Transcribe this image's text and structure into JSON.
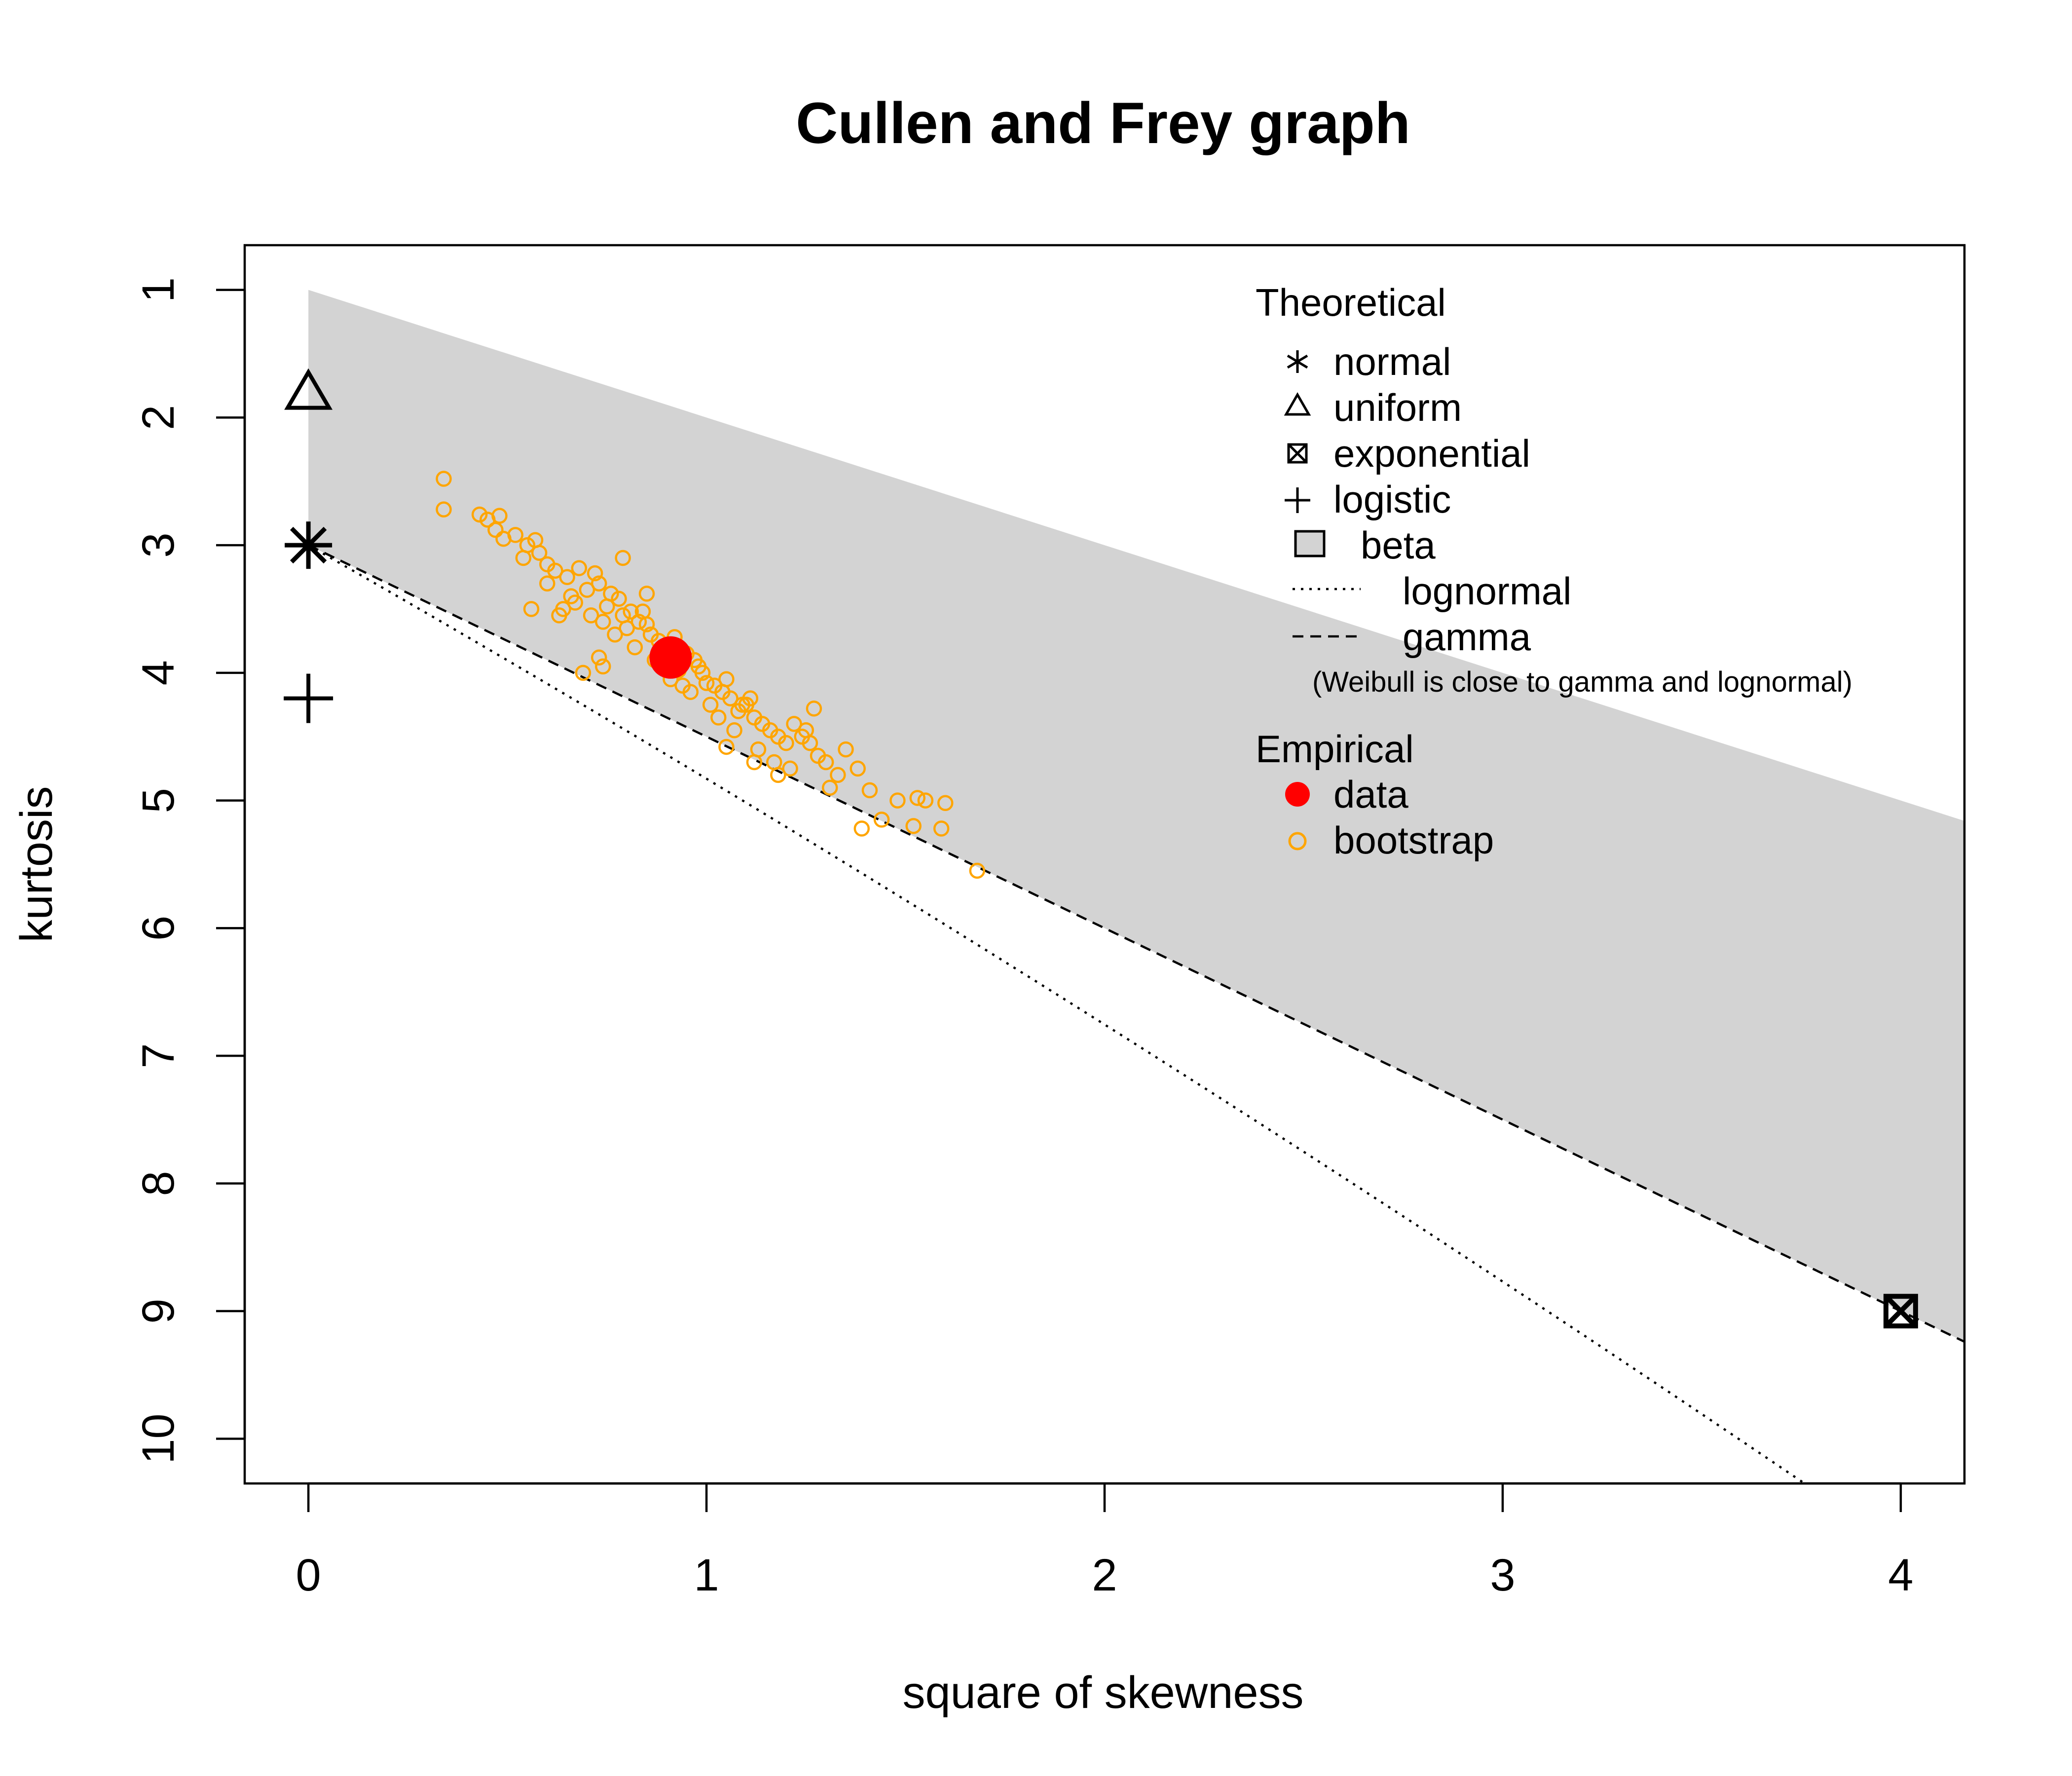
{
  "chart_data": {
    "type": "scatter",
    "title": "Cullen and Frey graph",
    "xlabel": "square of skewness",
    "ylabel": "kurtosis",
    "xlim": [
      -0.16,
      4.16
    ],
    "ylim": [
      10.35,
      0.65
    ],
    "y_axis_inverted": true,
    "xticks": [
      "0",
      "1",
      "2",
      "3",
      "4"
    ],
    "yticks": [
      "1",
      "2",
      "3",
      "4",
      "5",
      "6",
      "7",
      "8",
      "9",
      "10"
    ],
    "grid": false,
    "legend": {
      "placement": "top-right",
      "theoretical_title": "Theoretical",
      "empirical_title": "Empirical",
      "items": [
        {
          "key": "normal",
          "label": "normal",
          "symbol": "asterisk"
        },
        {
          "key": "uniform",
          "label": "uniform",
          "symbol": "triangle"
        },
        {
          "key": "exponential",
          "label": "exponential",
          "symbol": "boxed-x"
        },
        {
          "key": "logistic",
          "label": "logistic",
          "symbol": "plus"
        },
        {
          "key": "beta",
          "label": "beta",
          "symbol": "grey-square"
        },
        {
          "key": "lognormal",
          "label": "lognormal",
          "symbol": "dotted-line"
        },
        {
          "key": "gamma",
          "label": "gamma",
          "symbol": "dashed-line"
        }
      ],
      "note": "(Weibull is close to gamma and lognormal)",
      "empirical_items": [
        {
          "key": "data",
          "label": "data",
          "symbol": "filled-circle"
        },
        {
          "key": "bootstrap",
          "label": "bootstrap",
          "symbol": "open-circle"
        }
      ]
    },
    "colors": {
      "beta_region": "#d3d3d3",
      "data": "#ff0000",
      "bootstrap": "#ffa500",
      "lines": "#000000"
    },
    "theoretical_points": {
      "normal": {
        "x": 0,
        "y": 3
      },
      "uniform": {
        "x": 0,
        "y": 1.8
      },
      "exponential": {
        "x": 4,
        "y": 9
      },
      "logistic": {
        "x": 0,
        "y": 4.2
      }
    },
    "beta_region": {
      "x": [
        0,
        4.16,
        4.16,
        0
      ],
      "y": [
        1,
        5.16,
        9.24,
        3
      ]
    },
    "gamma_line": {
      "x": [
        0,
        4.16
      ],
      "y": [
        3,
        9.24
      ]
    },
    "lognormal_line": {
      "x_start": 0,
      "x_end": 3.77
    },
    "data_point": {
      "x": 0.91,
      "y": 3.88
    },
    "bootstrap": {
      "x": [
        0.34,
        0.34,
        0.43,
        0.45,
        0.47,
        0.49,
        0.48,
        0.52,
        0.55,
        0.54,
        0.58,
        0.6,
        0.57,
        0.62,
        0.6,
        0.65,
        0.68,
        0.66,
        0.7,
        0.72,
        0.64,
        0.67,
        0.73,
        0.75,
        0.78,
        0.74,
        0.71,
        0.76,
        0.79,
        0.81,
        0.77,
        0.8,
        0.83,
        0.85,
        0.82,
        0.86,
        0.88,
        0.84,
        0.87,
        0.9,
        0.92,
        0.89,
        0.93,
        0.95,
        0.91,
        0.94,
        0.97,
        0.99,
        0.96,
        1.0,
        1.02,
        0.98,
        1.01,
        1.04,
        1.06,
        1.03,
        1.05,
        1.08,
        1.1,
        1.07,
        1.12,
        1.14,
        1.11,
        1.16,
        1.18,
        1.13,
        1.2,
        1.22,
        1.17,
        1.24,
        1.26,
        1.21,
        1.28,
        1.3,
        1.25,
        1.33,
        1.35,
        1.31,
        1.38,
        1.41,
        1.44,
        1.48,
        1.52,
        1.55,
        1.59,
        1.6,
        1.68,
        1.39,
        1.53,
        1.05,
        1.12,
        0.73,
        0.69,
        0.56,
        0.74,
        0.79,
        1.18,
        1.09,
        0.63,
        0.85,
        1.27
      ],
      "y": [
        2.48,
        2.72,
        2.76,
        2.8,
        2.88,
        2.95,
        2.77,
        2.92,
        3.0,
        3.1,
        3.06,
        3.15,
        2.96,
        3.2,
        3.3,
        3.25,
        3.18,
        3.4,
        3.35,
        3.22,
        3.5,
        3.45,
        3.3,
        3.48,
        3.42,
        3.6,
        3.55,
        3.38,
        3.55,
        3.52,
        3.7,
        3.65,
        3.6,
        3.62,
        3.8,
        3.7,
        3.75,
        3.52,
        3.9,
        3.8,
        3.72,
        3.95,
        3.98,
        3.85,
        4.05,
        4.1,
        3.9,
        4.0,
        4.15,
        4.08,
        4.1,
        3.95,
        4.25,
        4.15,
        4.2,
        4.35,
        4.05,
        4.3,
        4.25,
        4.45,
        4.35,
        4.4,
        4.2,
        4.45,
        4.5,
        4.6,
        4.55,
        4.4,
        4.7,
        4.5,
        4.55,
        4.75,
        4.65,
        4.7,
        4.45,
        4.8,
        4.6,
        4.9,
        4.75,
        4.92,
        5.15,
        5.0,
        5.2,
        5.0,
        5.22,
        5.02,
        5.55,
        5.22,
        4.98,
        4.58,
        4.7,
        3.88,
        4.0,
        3.5,
        3.95,
        3.1,
        4.8,
        4.25,
        3.55,
        3.38,
        4.28
      ]
    }
  }
}
